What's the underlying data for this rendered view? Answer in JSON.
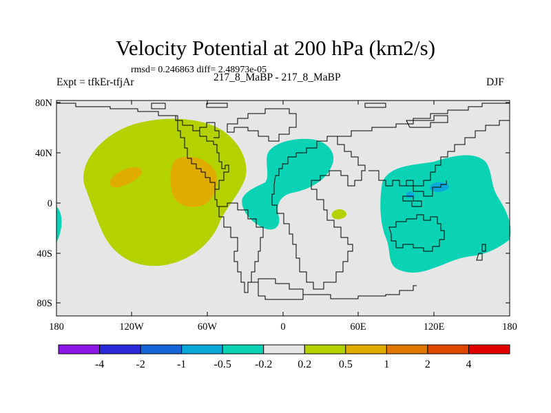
{
  "title": "Velocity Potential at 200 hPa (km2/s)",
  "stats": "rmsd= 0.246863 diff= 2.48973e-05",
  "left_label": "Expt = tfkEr-tfjAr",
  "center_label": "217_8_MaBP - 217_8_MaBP",
  "right_label": "DJF",
  "lat_ticks": [
    "80N",
    "40N",
    "0",
    "40S",
    "80S"
  ],
  "lon_ticks": [
    "180",
    "120W",
    "60W",
    "0",
    "60E",
    "120E",
    "180"
  ],
  "colorbar": {
    "colors": [
      "#8a15e6",
      "#2a2ad8",
      "#1565d8",
      "#0aa8d8",
      "#0ad2b4",
      "#e6e6e6",
      "#b4d200",
      "#e0ac00",
      "#e07800",
      "#e04800",
      "#e00000"
    ],
    "labels": [
      "-4",
      "-2",
      "-1",
      "-0.5",
      "-0.2",
      "0.2",
      "0.5",
      "1",
      "2",
      "4"
    ]
  },
  "map": {
    "background_color": "#e6e6e6",
    "lat_range": [
      -90,
      90
    ],
    "lon_range": [
      -180,
      180
    ]
  }
}
